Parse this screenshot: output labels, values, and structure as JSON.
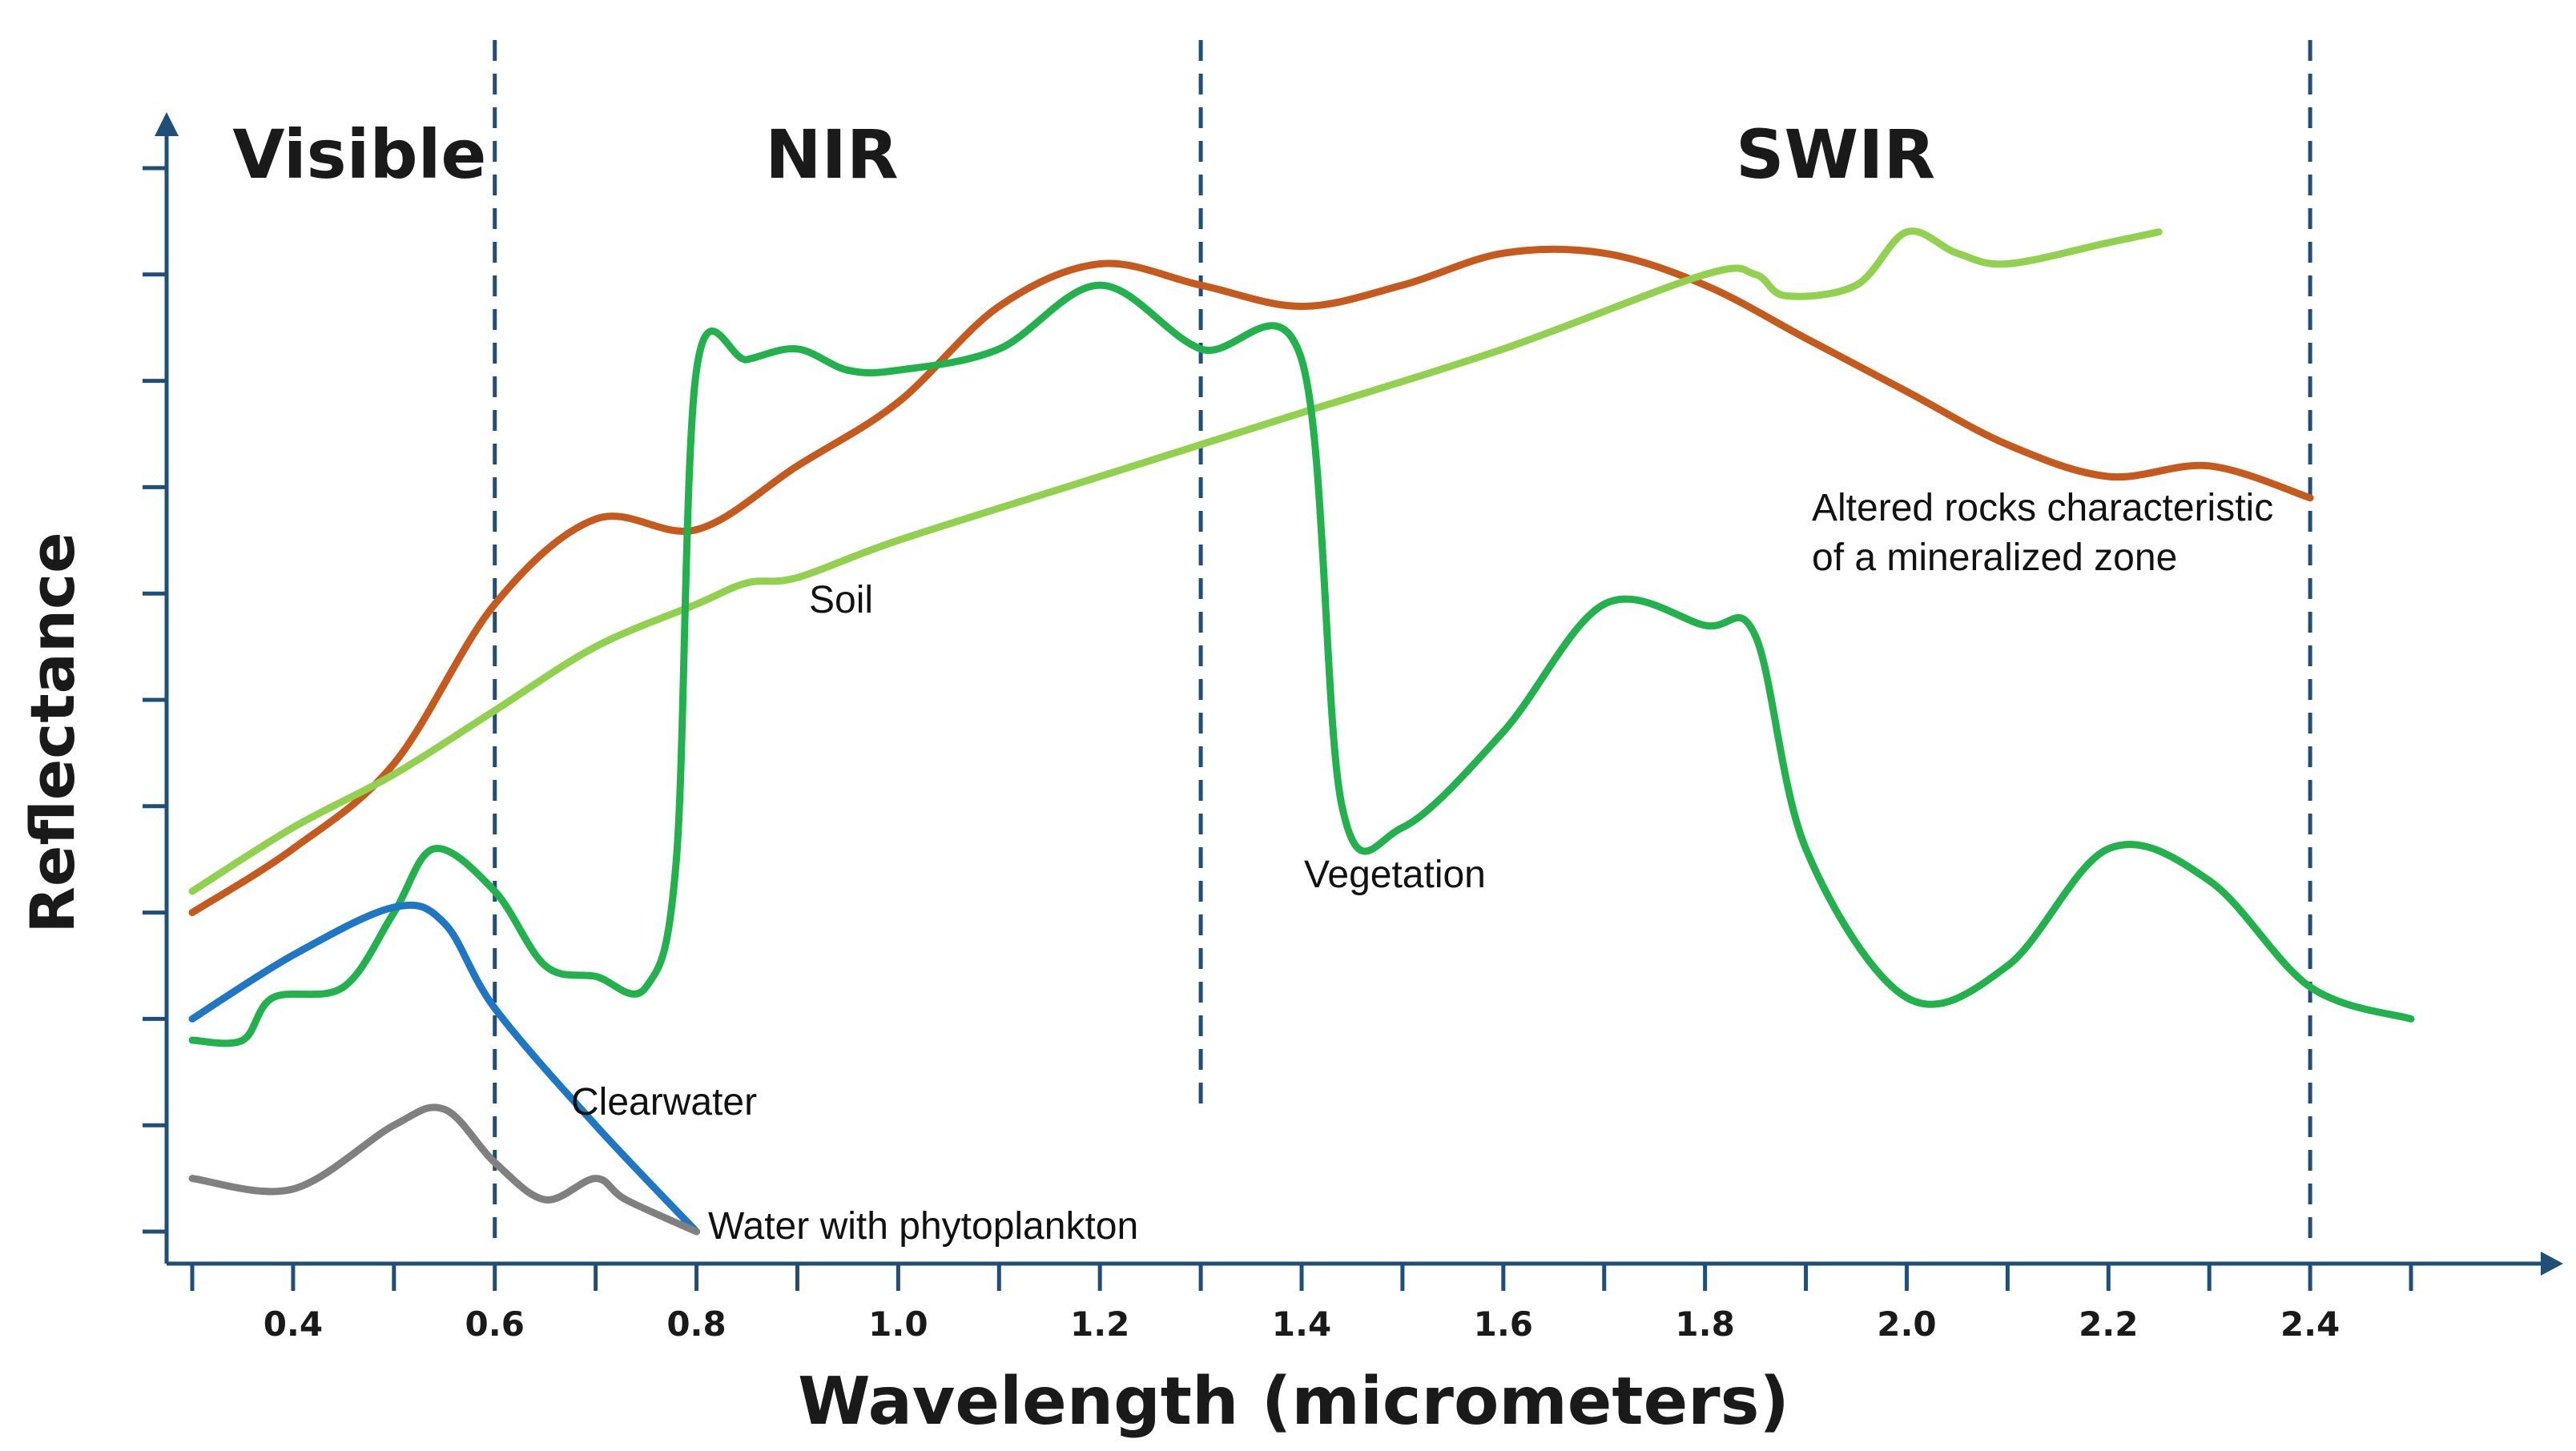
{
  "chart_data": {
    "type": "line",
    "xlabel": "Wavelength (micrometers)",
    "ylabel": "Reflectance",
    "xlim": [
      0.3,
      2.5
    ],
    "ylim": [
      0,
      10
    ],
    "x_ticks": [
      "0.4",
      "0.6",
      "0.8",
      "1.0",
      "1.2",
      "1.4",
      "1.6",
      "1.8",
      "2.0",
      "2.2",
      "2.4"
    ],
    "y_tick_count": 11,
    "y_tick_labels_shown": false,
    "grid": false,
    "legend": "none",
    "regions": [
      {
        "label": "Visible",
        "end": 0.6
      },
      {
        "label": "NIR",
        "end": 1.3
      },
      {
        "label": "SWIR",
        "end": 2.4
      }
    ],
    "series": [
      {
        "name": "Altered rocks characteristic of a mineralized zone",
        "color": "#c55a1e",
        "points": [
          [
            0.3,
            3.0
          ],
          [
            0.4,
            3.6
          ],
          [
            0.5,
            4.4
          ],
          [
            0.6,
            5.9
          ],
          [
            0.7,
            6.7
          ],
          [
            0.8,
            6.6
          ],
          [
            0.9,
            7.2
          ],
          [
            1.0,
            7.8
          ],
          [
            1.1,
            8.7
          ],
          [
            1.2,
            9.1
          ],
          [
            1.3,
            8.9
          ],
          [
            1.4,
            8.7
          ],
          [
            1.5,
            8.9
          ],
          [
            1.6,
            9.2
          ],
          [
            1.7,
            9.2
          ],
          [
            1.8,
            8.9
          ],
          [
            1.9,
            8.4
          ],
          [
            2.0,
            7.9
          ],
          [
            2.1,
            7.4
          ],
          [
            2.2,
            7.1
          ],
          [
            2.3,
            7.2
          ],
          [
            2.4,
            6.9
          ]
        ]
      },
      {
        "name": "Soil",
        "color": "#92d050",
        "points": [
          [
            0.3,
            3.2
          ],
          [
            0.4,
            3.8
          ],
          [
            0.5,
            4.3
          ],
          [
            0.6,
            4.9
          ],
          [
            0.7,
            5.5
          ],
          [
            0.8,
            5.9
          ],
          [
            0.85,
            6.1
          ],
          [
            0.9,
            6.15
          ],
          [
            1.0,
            6.5
          ],
          [
            1.2,
            7.1
          ],
          [
            1.4,
            7.7
          ],
          [
            1.6,
            8.3
          ],
          [
            1.8,
            9.0
          ],
          [
            1.85,
            9.0
          ],
          [
            1.88,
            8.8
          ],
          [
            1.95,
            8.9
          ],
          [
            2.0,
            9.4
          ],
          [
            2.05,
            9.2
          ],
          [
            2.1,
            9.1
          ],
          [
            2.2,
            9.3
          ],
          [
            2.25,
            9.4
          ]
        ]
      },
      {
        "name": "Vegetation",
        "color": "#22b14c",
        "points": [
          [
            0.3,
            1.8
          ],
          [
            0.35,
            1.8
          ],
          [
            0.38,
            2.2
          ],
          [
            0.45,
            2.3
          ],
          [
            0.5,
            3.0
          ],
          [
            0.54,
            3.6
          ],
          [
            0.6,
            3.2
          ],
          [
            0.65,
            2.5
          ],
          [
            0.7,
            2.4
          ],
          [
            0.75,
            2.3
          ],
          [
            0.78,
            3.5
          ],
          [
            0.8,
            8.1
          ],
          [
            0.85,
            8.2
          ],
          [
            0.9,
            8.3
          ],
          [
            0.95,
            8.1
          ],
          [
            1.0,
            8.1
          ],
          [
            1.1,
            8.3
          ],
          [
            1.2,
            8.9
          ],
          [
            1.3,
            8.3
          ],
          [
            1.4,
            8.2
          ],
          [
            1.44,
            4.0
          ],
          [
            1.5,
            3.8
          ],
          [
            1.6,
            4.7
          ],
          [
            1.7,
            5.9
          ],
          [
            1.8,
            5.7
          ],
          [
            1.85,
            5.6
          ],
          [
            1.9,
            3.6
          ],
          [
            2.0,
            2.2
          ],
          [
            2.1,
            2.5
          ],
          [
            2.2,
            3.6
          ],
          [
            2.3,
            3.3
          ],
          [
            2.4,
            2.3
          ],
          [
            2.5,
            2.0
          ]
        ]
      },
      {
        "name": "Clearwater",
        "color": "#1f77c4",
        "points": [
          [
            0.3,
            2.0
          ],
          [
            0.4,
            2.6
          ],
          [
            0.5,
            3.05
          ],
          [
            0.55,
            2.9
          ],
          [
            0.6,
            2.1
          ],
          [
            0.7,
            1.0
          ],
          [
            0.8,
            0.0
          ]
        ]
      },
      {
        "name": "Water with phytoplankton",
        "color": "#808080",
        "points": [
          [
            0.3,
            0.5
          ],
          [
            0.4,
            0.4
          ],
          [
            0.5,
            1.0
          ],
          [
            0.55,
            1.15
          ],
          [
            0.6,
            0.65
          ],
          [
            0.65,
            0.3
          ],
          [
            0.7,
            0.5
          ],
          [
            0.73,
            0.3
          ],
          [
            0.8,
            0.0
          ]
        ]
      }
    ]
  }
}
